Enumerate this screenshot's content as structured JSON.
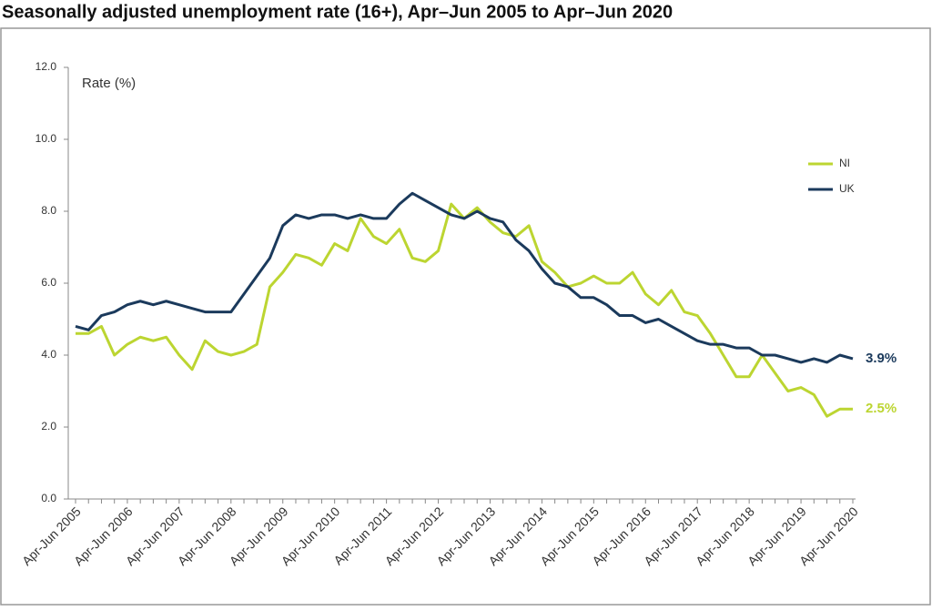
{
  "chart_data": {
    "type": "line",
    "title": "Seasonally adjusted unemployment rate (16+), Apr–Jun 2005 to Apr–Jun 2020",
    "y_label": "Rate (%)",
    "categories": [
      "Apr-Jun 2005",
      null,
      null,
      null,
      "Apr-Jun 2006",
      null,
      null,
      null,
      "Apr-Jun 2007",
      null,
      null,
      null,
      "Apr-Jun 2008",
      null,
      null,
      null,
      "Apr-Jun 2009",
      null,
      null,
      null,
      "Apr-Jun 2010",
      null,
      null,
      null,
      "Apr-Jun 2011",
      null,
      null,
      null,
      "Apr-Jun 2012",
      null,
      null,
      null,
      "Apr-Jun 2013",
      null,
      null,
      null,
      "Apr-Jun 2014",
      null,
      null,
      null,
      "Apr-Jun 2015",
      null,
      null,
      null,
      "Apr-Jun 2016",
      null,
      null,
      null,
      "Apr-Jun 2017",
      null,
      null,
      null,
      "Apr-Jun 2018",
      null,
      null,
      null,
      "Apr-Jun 2019",
      null,
      null,
      null,
      "Apr-Jun 2020"
    ],
    "series": [
      {
        "name": "NI",
        "color": "#bcd531",
        "end_label": "2.5%",
        "values": [
          4.6,
          4.6,
          4.8,
          4.0,
          4.3,
          4.5,
          4.4,
          4.5,
          4.0,
          3.6,
          4.4,
          4.1,
          4.0,
          4.1,
          4.3,
          5.9,
          6.3,
          6.8,
          6.7,
          6.5,
          7.1,
          6.9,
          7.8,
          7.3,
          7.1,
          7.5,
          6.7,
          6.6,
          6.9,
          8.2,
          7.8,
          8.1,
          7.7,
          7.4,
          7.3,
          7.6,
          6.6,
          6.3,
          5.9,
          6.0,
          6.2,
          6.0,
          6.0,
          6.3,
          5.7,
          5.4,
          5.8,
          5.2,
          5.1,
          4.6,
          4.0,
          3.4,
          3.4,
          4.0,
          3.5,
          3.0,
          3.1,
          2.9,
          2.3,
          2.5,
          2.5
        ]
      },
      {
        "name": "UK",
        "color": "#1b3a5c",
        "end_label": "3.9%",
        "values": [
          4.8,
          4.7,
          5.1,
          5.2,
          5.4,
          5.5,
          5.4,
          5.5,
          5.4,
          5.3,
          5.2,
          5.2,
          5.2,
          5.7,
          6.2,
          6.7,
          7.6,
          7.9,
          7.8,
          7.9,
          7.9,
          7.8,
          7.9,
          7.8,
          7.8,
          8.2,
          8.5,
          8.3,
          8.1,
          7.9,
          7.8,
          8.0,
          7.8,
          7.7,
          7.2,
          6.9,
          6.4,
          6.0,
          5.9,
          5.6,
          5.6,
          5.4,
          5.1,
          5.1,
          4.9,
          5.0,
          4.8,
          4.6,
          4.4,
          4.3,
          4.3,
          4.2,
          4.2,
          4.0,
          4.0,
          3.9,
          3.8,
          3.9,
          3.8,
          4.0,
          3.9
        ]
      }
    ],
    "ylim": [
      0,
      12
    ],
    "yticks": [
      {
        "value": 0,
        "label": "0.0"
      },
      {
        "value": 2,
        "label": "2.0"
      },
      {
        "value": 4,
        "label": "4.0"
      },
      {
        "value": 6,
        "label": "6.0"
      },
      {
        "value": 8,
        "label": "8.0"
      },
      {
        "value": 10,
        "label": "10.0"
      },
      {
        "value": 12,
        "label": "12.0"
      }
    ],
    "grid": false,
    "legend": "right"
  }
}
